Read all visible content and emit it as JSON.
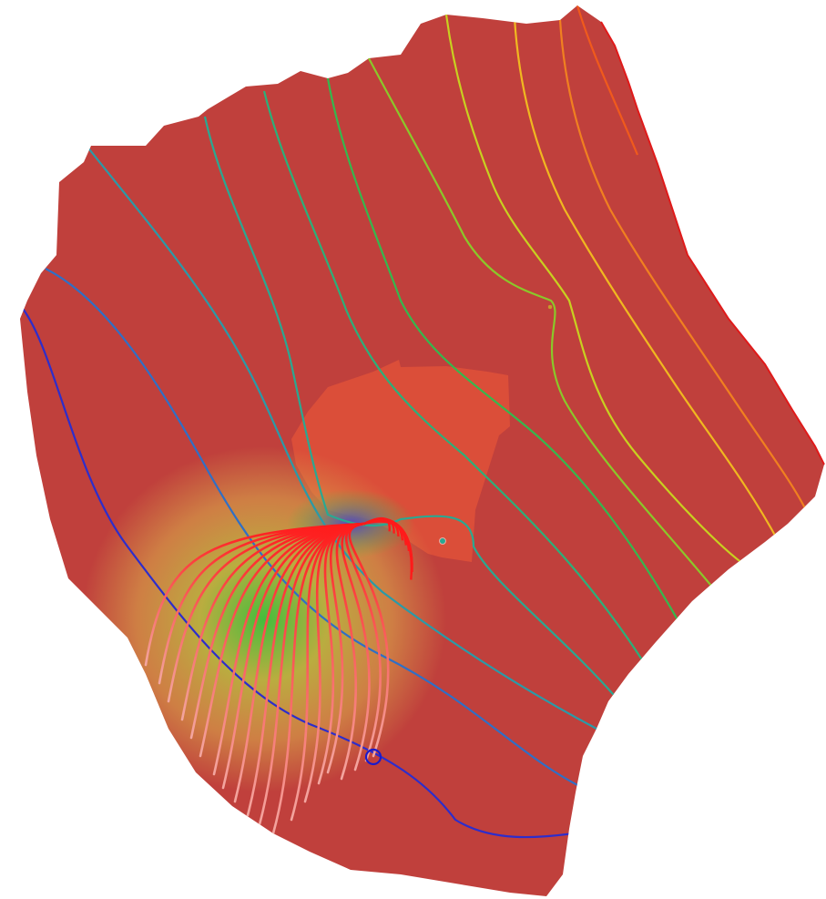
{
  "map": {
    "colors": {
      "background": "#ffffff",
      "domain_fill": "#c0403c",
      "domain_edge": "#e01a1a",
      "inner_zone_fill": "#de5038",
      "plume_low": "#d8a84a",
      "plume_mid": "#b8c040",
      "plume_high": "#3cc43c",
      "plume_peak": "#4a40d0"
    },
    "contour_colors": [
      "#2d2dcc",
      "#2f6fc6",
      "#2a9aa8",
      "#2aa892",
      "#2bb07a",
      "#35b84e",
      "#4ac03a",
      "#8ac82a",
      "#c8d020",
      "#f0e020",
      "#f0b820",
      "#f08020",
      "#f05a1c"
    ],
    "pathline_color": "#ff1a1a",
    "pathline_tail_color": "#f3a6a0",
    "well_markers": [
      {
        "name": "extraction-well",
        "color": "#1a1acc"
      },
      {
        "name": "injection-well",
        "color": "#2aa892"
      },
      {
        "name": "observation-point",
        "color": "#c89a2a"
      }
    ]
  }
}
